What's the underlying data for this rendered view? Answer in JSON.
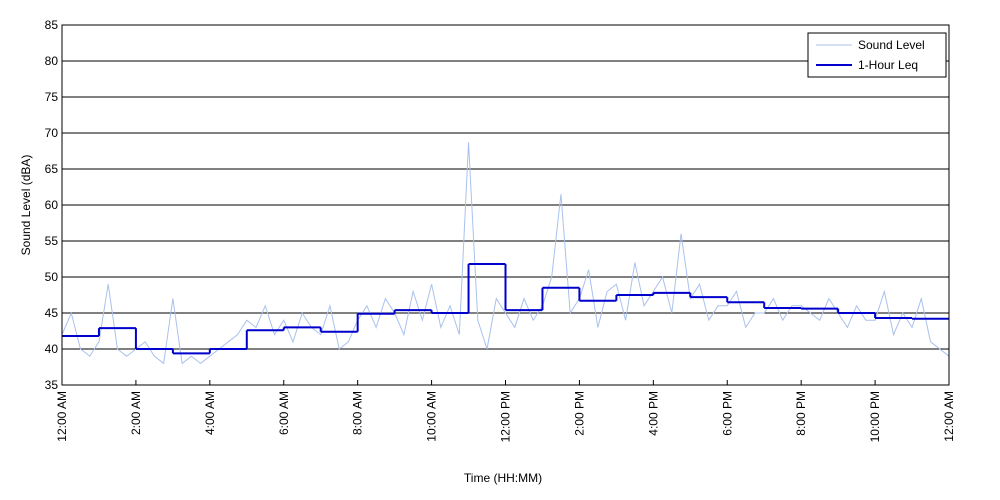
{
  "chart_data": {
    "type": "line",
    "xlabel": "Time (HH:MM)",
    "ylabel": "Sound Level (dBA)",
    "xlim": [
      0,
      24
    ],
    "xticks": [
      {
        "value": 0,
        "label": "12:00 AM"
      },
      {
        "value": 2,
        "label": "2:00 AM"
      },
      {
        "value": 4,
        "label": "4:00 AM"
      },
      {
        "value": 6,
        "label": "6:00 AM"
      },
      {
        "value": 8,
        "label": "8:00 AM"
      },
      {
        "value": 10,
        "label": "10:00 AM"
      },
      {
        "value": 12,
        "label": "12:00 PM"
      },
      {
        "value": 14,
        "label": "2:00 PM"
      },
      {
        "value": 16,
        "label": "4:00 PM"
      },
      {
        "value": 18,
        "label": "6:00 PM"
      },
      {
        "value": 20,
        "label": "8:00 PM"
      },
      {
        "value": 22,
        "label": "10:00 PM"
      },
      {
        "value": 24,
        "label": "12:00 AM"
      }
    ],
    "ylim": [
      35,
      85
    ],
    "yticks": [
      35,
      40,
      45,
      50,
      55,
      60,
      65,
      70,
      75,
      80,
      85
    ],
    "grid": true,
    "legend": "upper right",
    "series": [
      {
        "name": "Sound Level",
        "color": "#a9c1ee",
        "x": [
          0,
          0.25,
          0.5,
          0.75,
          1,
          1.25,
          1.5,
          1.75,
          2,
          2.25,
          2.5,
          2.75,
          3,
          3.25,
          3.5,
          3.75,
          4,
          4.25,
          4.5,
          4.75,
          5,
          5.25,
          5.5,
          5.75,
          6,
          6.25,
          6.5,
          6.75,
          7,
          7.25,
          7.5,
          7.75,
          8,
          8.25,
          8.5,
          8.75,
          9,
          9.25,
          9.5,
          9.75,
          10,
          10.25,
          10.5,
          10.75,
          11,
          11.25,
          11.5,
          11.75,
          12,
          12.25,
          12.5,
          12.75,
          13,
          13.25,
          13.5,
          13.75,
          14,
          14.25,
          14.5,
          14.75,
          15,
          15.25,
          15.5,
          15.75,
          16,
          16.25,
          16.5,
          16.75,
          17,
          17.25,
          17.5,
          17.75,
          18,
          18.25,
          18.5,
          18.75,
          19,
          19.25,
          19.5,
          19.75,
          20,
          20.25,
          20.5,
          20.75,
          21,
          21.25,
          21.5,
          21.75,
          22,
          22.25,
          22.5,
          22.75,
          23,
          23.25,
          23.5,
          23.75,
          24
        ],
        "values": [
          42,
          45,
          40,
          39,
          41,
          49,
          40,
          39,
          40,
          41,
          39,
          38,
          47,
          38,
          39,
          38,
          39,
          40,
          41,
          42,
          44,
          43,
          46,
          42,
          44,
          41,
          45,
          43,
          42,
          46,
          40,
          41,
          44,
          46,
          43,
          47,
          45,
          42,
          48,
          44,
          49,
          43,
          46,
          42,
          68.7,
          44,
          40,
          47,
          45,
          43,
          47,
          44,
          46,
          50,
          61.5,
          45,
          47,
          51,
          43,
          48,
          49,
          44,
          52,
          46,
          48,
          50,
          45,
          56,
          47,
          49,
          44,
          46,
          46,
          48,
          43,
          45,
          45,
          47,
          44,
          46,
          46,
          45,
          44,
          47,
          45,
          43,
          46,
          44,
          44,
          48,
          42,
          45,
          43,
          47,
          41,
          40,
          39
        ]
      },
      {
        "name": "1-Hour Leq",
        "color": "#0000cc",
        "step": "post",
        "x": [
          0,
          1,
          2,
          3,
          4,
          5,
          6,
          7,
          8,
          9,
          10,
          11,
          12,
          13,
          14,
          15,
          16,
          17,
          18,
          19,
          20,
          21,
          22,
          23
        ],
        "values": [
          41.8,
          42.9,
          40.0,
          39.4,
          40.0,
          42.6,
          43.0,
          42.4,
          44.9,
          45.4,
          45.0,
          51.8,
          45.4,
          48.5,
          46.7,
          47.5,
          47.8,
          47.2,
          46.5,
          45.7,
          45.6,
          45.0,
          44.3,
          44.2
        ]
      }
    ]
  }
}
